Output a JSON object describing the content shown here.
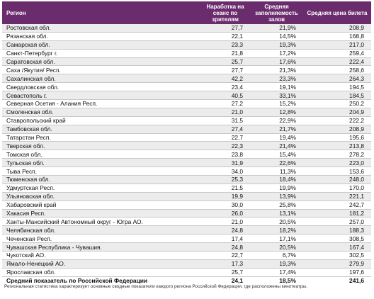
{
  "header": {
    "region": "Регион",
    "sessions": "Наработка на сеанс по зрителям",
    "occupancy": "Средняя заполняемость залов",
    "price": "Средняя цена билета"
  },
  "rows": [
    {
      "region": "Ростовская обл.",
      "sessions": "27,7",
      "occupancy": "21,9%",
      "price": "208,9"
    },
    {
      "region": "Рязанская обл.",
      "sessions": "22,1",
      "occupancy": "14,5%",
      "price": "168,8"
    },
    {
      "region": "Самарская обл.",
      "sessions": "23,3",
      "occupancy": "19,3%",
      "price": "217,0"
    },
    {
      "region": "Санкт-Петербург г.",
      "sessions": "21,8",
      "occupancy": "17,2%",
      "price": "259,4"
    },
    {
      "region": "Саратовская обл.",
      "sessions": "25,7",
      "occupancy": "17,6%",
      "price": "222,4"
    },
    {
      "region": "Саха /Якутия/ Респ.",
      "sessions": "27,7",
      "occupancy": "21,3%",
      "price": "258,6"
    },
    {
      "region": "Сахалинская обл.",
      "sessions": "42,2",
      "occupancy": "23,3%",
      "price": "264,3"
    },
    {
      "region": "Свердловская обл.",
      "sessions": "23,4",
      "occupancy": "19,1%",
      "price": "194,5"
    },
    {
      "region": "Севастополь г.",
      "sessions": "40,5",
      "occupancy": "33,1%",
      "price": "184,5"
    },
    {
      "region": "Северная Осетия - Алания Респ.",
      "sessions": "27,2",
      "occupancy": "15,2%",
      "price": "250,2"
    },
    {
      "region": "Смоленская обл.",
      "sessions": "21,0",
      "occupancy": "12,8%",
      "price": "204,9"
    },
    {
      "region": "Ставропольский край",
      "sessions": "31,5",
      "occupancy": "22,9%",
      "price": "222,2"
    },
    {
      "region": "Тамбовская обл.",
      "sessions": "27,4",
      "occupancy": "21,7%",
      "price": "208,9"
    },
    {
      "region": "Татарстан Респ.",
      "sessions": "22,7",
      "occupancy": "19,4%",
      "price": "195,6"
    },
    {
      "region": "Тверская обл.",
      "sessions": "22,3",
      "occupancy": "21,4%",
      "price": "213,8"
    },
    {
      "region": "Томская обл.",
      "sessions": "23,8",
      "occupancy": "15,4%",
      "price": "278,2"
    },
    {
      "region": "Тульская обл.",
      "sessions": "31,9",
      "occupancy": "22,6%",
      "price": "223,0"
    },
    {
      "region": "Тыва Респ.",
      "sessions": "34,0",
      "occupancy": "11,3%",
      "price": "153,6"
    },
    {
      "region": "Тюменская обл.",
      "sessions": "25,3",
      "occupancy": "18,4%",
      "price": "248,0"
    },
    {
      "region": "Удмуртская Респ.",
      "sessions": "21,5",
      "occupancy": "19,9%",
      "price": "170,0"
    },
    {
      "region": "Ульяновская обл.",
      "sessions": "19,9",
      "occupancy": "13,9%",
      "price": "221,1"
    },
    {
      "region": "Хабаровский край",
      "sessions": "30,0",
      "occupancy": "25,8%",
      "price": "242,7"
    },
    {
      "region": "Хакасия Респ.",
      "sessions": "26,0",
      "occupancy": "13,1%",
      "price": "181,2"
    },
    {
      "region": "Ханты-Мансийский Автономный округ - Югра АО.",
      "sessions": "21,0",
      "occupancy": "20,5%",
      "price": "257,0"
    },
    {
      "region": "Челябинская обл.",
      "sessions": "24,8",
      "occupancy": "18,2%",
      "price": "188,3"
    },
    {
      "region": "Чеченская Респ.",
      "sessions": "17,4",
      "occupancy": "17,1%",
      "price": "308,5"
    },
    {
      "region": "Чувашская Республика - Чувашия.",
      "sessions": "24,8",
      "occupancy": "20,5%",
      "price": "167,4"
    },
    {
      "region": "Чукотский АО.",
      "sessions": "22,7",
      "occupancy": "6,7%",
      "price": "302,5"
    },
    {
      "region": "Ямало-Ненецкий АО.",
      "sessions": "17,3",
      "occupancy": "19,3%",
      "price": "279,9"
    },
    {
      "region": "Ярославская обл.",
      "sessions": "25,7",
      "occupancy": "17,4%",
      "price": "197,6"
    }
  ],
  "total": {
    "region": "Средний показатель по Российской Федерации",
    "sessions": "24,1",
    "occupancy": "18,5%",
    "price": "241,6"
  },
  "footnote": "Региональная статистика характеризует основные сводные показатели каждого региона Российской Федерации, где расположены кинотеатры.",
  "colors": {
    "header_bg": "#6b2c6e",
    "row_alt_bg": "#ececec"
  }
}
